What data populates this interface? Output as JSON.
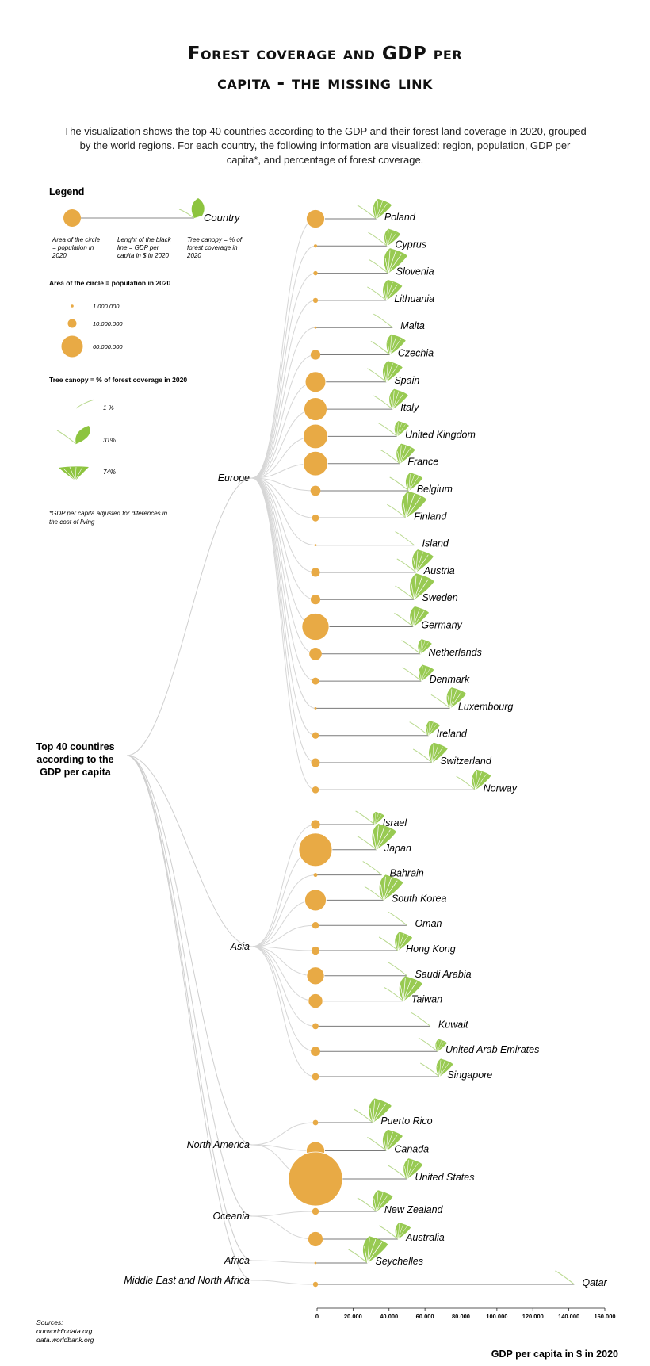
{
  "header": {
    "title_line1": "Forest coverage and GDP per",
    "title_line2": "capita - the missing link",
    "description": "The visualization shows the top 40 countries according to the GDP and their forest land coverage in 2020, grouped by the world regions. For each country, the following information are visualized: region, population, GDP per capita*, and percentage of forest coverage."
  },
  "legend": {
    "title": "Legend",
    "example_country": "Country",
    "circle_note": "Area of the circle = population in 2020",
    "line_note": "Lenght of the black line = GDP per capita in $ in 2020",
    "canopy_note": "Tree canopy = % of forest coverage in 2020",
    "population_title": "Area of the circle = population in 2020",
    "population_sizes": [
      {
        "label": "1.000.000",
        "value": 1000000
      },
      {
        "label": "10.000.000",
        "value": 10000000
      },
      {
        "label": "60.000.000",
        "value": 60000000
      }
    ],
    "canopy_title": "Tree canopy = % of forest coverage in 2020",
    "canopy_sizes": [
      {
        "label": "1 %",
        "value": 1
      },
      {
        "label": "31%",
        "value": 31
      },
      {
        "label": "74%",
        "value": 74
      }
    ],
    "footnote": "*GDP per capita adjusted for diferences in the cost of living"
  },
  "root_label": "Top 40 countires according to the GDP per capita",
  "sources": {
    "title": "Sources:",
    "lines": [
      "ourworldindata.org",
      "data.worldbank.org"
    ]
  },
  "chart_data": {
    "type": "scatter",
    "xlabel": "GDP per capita in $ in 2020",
    "xlim": [
      0,
      160000
    ],
    "x_ticks": [
      {
        "value": 0,
        "label": "0"
      },
      {
        "value": 20000,
        "label": "20.000"
      },
      {
        "value": 40000,
        "label": "40.000"
      },
      {
        "value": 60000,
        "label": "60.000"
      },
      {
        "value": 80000,
        "label": "80.000"
      },
      {
        "value": 100000,
        "label": "100.000"
      },
      {
        "value": 120000,
        "label": "120.000"
      },
      {
        "value": 140000,
        "label": "140.000"
      },
      {
        "value": 160000,
        "label": "160.000"
      }
    ],
    "circle_color": "#E8AA45",
    "canopy_color": "#8DC43F",
    "regions": [
      {
        "name": "Europe",
        "countries": [
          {
            "name": "Poland",
            "gdp": 33000,
            "population": 37900000,
            "forest": 31
          },
          {
            "name": "Cyprus",
            "gdp": 39000,
            "population": 1200000,
            "forest": 19
          },
          {
            "name": "Slovenia",
            "gdp": 39500,
            "population": 2100000,
            "forest": 61
          },
          {
            "name": "Lithuania",
            "gdp": 38500,
            "population": 2800000,
            "forest": 35
          },
          {
            "name": "Malta",
            "gdp": 42000,
            "population": 500000,
            "forest": 1
          },
          {
            "name": "Czechia",
            "gdp": 40500,
            "population": 10700000,
            "forest": 34
          },
          {
            "name": "Spain",
            "gdp": 38500,
            "population": 47400000,
            "forest": 37
          },
          {
            "name": "Italy",
            "gdp": 42000,
            "population": 59500000,
            "forest": 32
          },
          {
            "name": "United Kingdom",
            "gdp": 44500,
            "population": 67100000,
            "forest": 13
          },
          {
            "name": "France",
            "gdp": 46000,
            "population": 67400000,
            "forest": 31
          },
          {
            "name": "Belgium",
            "gdp": 51000,
            "population": 11500000,
            "forest": 23
          },
          {
            "name": "Finland",
            "gdp": 49500,
            "population": 5500000,
            "forest": 74
          },
          {
            "name": "Island",
            "gdp": 54000,
            "population": 400000,
            "forest": 1
          },
          {
            "name": "Austria",
            "gdp": 55000,
            "population": 8900000,
            "forest": 47
          },
          {
            "name": "Sweden",
            "gdp": 54000,
            "population": 10400000,
            "forest": 69
          },
          {
            "name": "Germany",
            "gdp": 53500,
            "population": 83200000,
            "forest": 33
          },
          {
            "name": "Netherlands",
            "gdp": 57500,
            "population": 17400000,
            "forest": 11
          },
          {
            "name": "Denmark",
            "gdp": 58000,
            "population": 5800000,
            "forest": 16
          },
          {
            "name": "Luxembourg",
            "gdp": 74000,
            "population": 600000,
            "forest": 36
          },
          {
            "name": "Ireland",
            "gdp": 62000,
            "population": 5000000,
            "forest": 11
          },
          {
            "name": "Switzerland",
            "gdp": 64000,
            "population": 8600000,
            "forest": 32
          },
          {
            "name": "Norway",
            "gdp": 88000,
            "population": 5400000,
            "forest": 33
          }
        ]
      },
      {
        "name": "Asia",
        "countries": [
          {
            "name": "Israel",
            "gdp": 32000,
            "population": 9200000,
            "forest": 6
          },
          {
            "name": "Japan",
            "gdp": 33000,
            "population": 125800000,
            "forest": 68
          },
          {
            "name": "Bahrain",
            "gdp": 36000,
            "population": 1700000,
            "forest": 1
          },
          {
            "name": "South Korea",
            "gdp": 37000,
            "population": 51800000,
            "forest": 64
          },
          {
            "name": "Oman",
            "gdp": 50000,
            "population": 5100000,
            "forest": 1
          },
          {
            "name": "Hong Kong",
            "gdp": 45000,
            "population": 7500000,
            "forest": 25
          },
          {
            "name": "Saudi Arabia",
            "gdp": 50000,
            "population": 34800000,
            "forest": 1
          },
          {
            "name": "Taiwan",
            "gdp": 48000,
            "population": 23600000,
            "forest": 60
          },
          {
            "name": "Kuwait",
            "gdp": 63000,
            "population": 4300000,
            "forest": 1
          },
          {
            "name": "United Arab Emirates",
            "gdp": 67000,
            "population": 9900000,
            "forest": 5
          },
          {
            "name": "Singapore",
            "gdp": 68000,
            "population": 5700000,
            "forest": 22
          }
        ]
      },
      {
        "name": "North America",
        "countries": [
          {
            "name": "Puerto Rico",
            "gdp": 31000,
            "population": 3300000,
            "forest": 56
          },
          {
            "name": "Canada",
            "gdp": 38500,
            "population": 38000000,
            "forest": 38
          },
          {
            "name": "United States",
            "gdp": 50000,
            "population": 329500000,
            "forest": 34
          }
        ]
      },
      {
        "name": "Oceania",
        "countries": [
          {
            "name": "New Zealand",
            "gdp": 33000,
            "population": 5100000,
            "forest": 38
          },
          {
            "name": "Australia",
            "gdp": 45000,
            "population": 25700000,
            "forest": 17
          }
        ]
      },
      {
        "name": "Africa",
        "countries": [
          {
            "name": "Seychelles",
            "gdp": 28000,
            "population": 100000,
            "forest": 74
          }
        ]
      },
      {
        "name": "Middle East and North Africa",
        "countries": [
          {
            "name": "Qatar",
            "gdp": 143000,
            "population": 2900000,
            "forest": 1
          }
        ]
      }
    ]
  }
}
